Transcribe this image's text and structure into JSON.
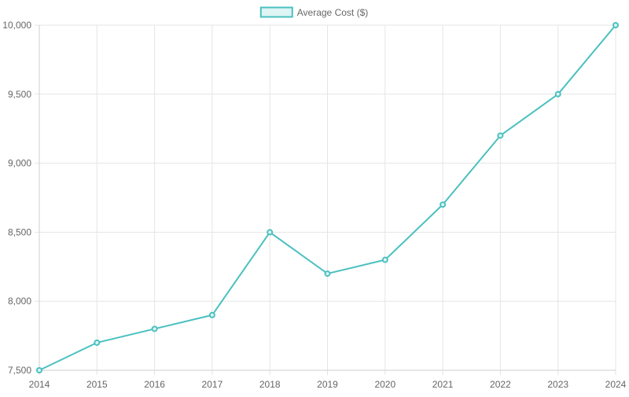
{
  "chart_data": {
    "type": "line",
    "title": "",
    "xlabel": "",
    "ylabel": "",
    "x": [
      "2014",
      "2015",
      "2016",
      "2017",
      "2018",
      "2019",
      "2020",
      "2021",
      "2022",
      "2023",
      "2024"
    ],
    "ylim": [
      7500,
      10000
    ],
    "yticks": [
      7500,
      8000,
      8500,
      9000,
      9500,
      10000
    ],
    "ytick_labels": [
      "7,500",
      "8,000",
      "8,500",
      "9,000",
      "9,500",
      "10,000"
    ],
    "grid": true,
    "legend_position": "top-center",
    "series": [
      {
        "name": "Average Cost ($)",
        "values": [
          7500,
          7700,
          7800,
          7900,
          8500,
          8200,
          8300,
          8700,
          9200,
          9500,
          10000
        ],
        "color": "#4bc0c0",
        "fill": "#dff4f4"
      }
    ]
  }
}
